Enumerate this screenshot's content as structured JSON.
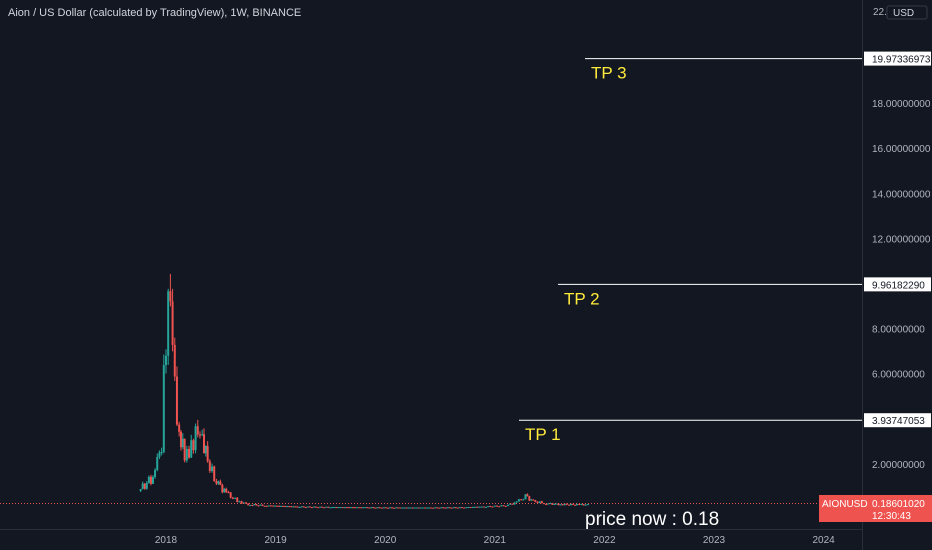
{
  "header": {
    "title": "Aion / US Dollar (calculated by TradingView), 1W, BINANCE"
  },
  "price_axis": {
    "currency": "USD",
    "top_partial_label": "22.0",
    "ticks": [
      "18.00000000",
      "16.00000000",
      "14.00000000",
      "12.00000000",
      "8.00000000",
      "6.00000000",
      "2.00000000"
    ]
  },
  "levels": [
    {
      "label": "TP 3",
      "value_text": "19.97336973",
      "value": 19.97336973
    },
    {
      "label": "TP 2",
      "value_text": "9.96182290",
      "value": 9.9618229
    },
    {
      "label": "TP 1",
      "value_text": "3.93747053",
      "value": 3.93747053
    }
  ],
  "current": {
    "symbol": "AIONUSD",
    "price_text": "0.18601020",
    "countdown": "12:30:43",
    "note": "price now : 0.18"
  },
  "colors": {
    "background": "#131722",
    "up": "#26a69a",
    "down": "#ef5350",
    "level": "#ffffff",
    "annotation": "#ffeb3b",
    "axis_text": "#b2b5be"
  },
  "chart_data": {
    "type": "candlestick",
    "title": "Aion / US Dollar (calculated by TradingView), 1W, BINANCE",
    "x_ticks": [
      "2018",
      "2019",
      "2020",
      "2021",
      "2022",
      "2023",
      "2024"
    ],
    "y_range": [
      0,
      22
    ],
    "y_scale": "linear",
    "grid": false,
    "series": [
      {
        "x": [
          2017.75,
          2017.9,
          2017.96,
          2018.0,
          2018.04,
          2018.08,
          2018.12,
          2018.17,
          2018.21,
          2018.25,
          2018.29,
          2018.33,
          2018.38,
          2018.46,
          2018.55,
          2018.65,
          2018.75,
          2018.9,
          2019.2,
          2019.5,
          2019.8,
          2020.1,
          2020.4,
          2020.7,
          2020.9,
          2021.1,
          2021.2,
          2021.28,
          2021.35,
          2021.45,
          2021.6,
          2021.75,
          2021.85
        ],
        "y": [
          0.8,
          1.5,
          3.0,
          8.0,
          11.0,
          6.0,
          3.0,
          2.5,
          2.2,
          3.0,
          4.0,
          3.5,
          2.0,
          1.2,
          0.7,
          0.35,
          0.2,
          0.15,
          0.1,
          0.08,
          0.07,
          0.06,
          0.06,
          0.07,
          0.1,
          0.15,
          0.3,
          0.55,
          0.35,
          0.25,
          0.2,
          0.19,
          0.19
        ]
      }
    ],
    "annotations": [
      "TP 3",
      "TP 2",
      "TP 1",
      "price now : 0.18"
    ]
  }
}
